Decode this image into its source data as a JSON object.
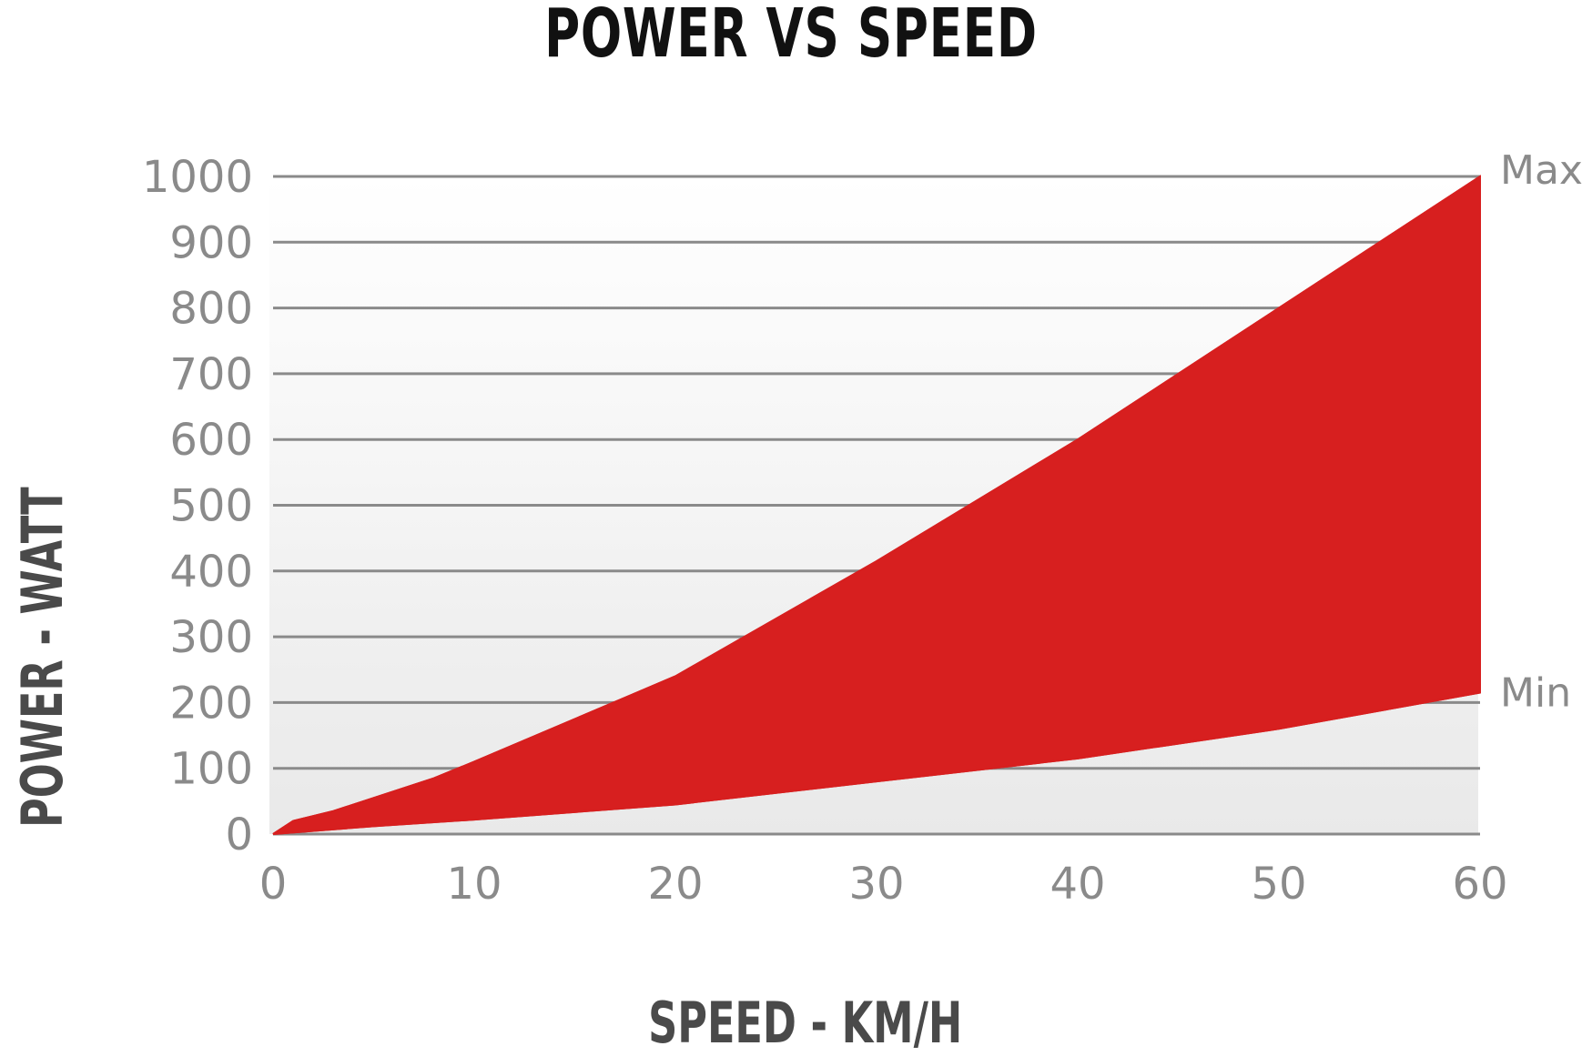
{
  "chart_data": {
    "type": "area",
    "title": "POWER VS SPEED",
    "xlabel": "SPEED - KM/H",
    "ylabel": "POWER - WATT",
    "xlim": [
      0,
      60
    ],
    "ylim": [
      0,
      1000
    ],
    "x_ticks": [
      "0",
      "10",
      "20",
      "30",
      "40",
      "50",
      "60"
    ],
    "y_ticks": [
      "0",
      "100",
      "200",
      "300",
      "400",
      "500",
      "600",
      "700",
      "800",
      "900",
      "1000"
    ],
    "grid": true,
    "fill_color": "#d71f1f",
    "series": [
      {
        "name": "Max",
        "x": [
          0,
          1,
          3,
          8,
          10,
          20,
          30,
          40,
          50,
          60
        ],
        "values": [
          0,
          20,
          35,
          85,
          110,
          240,
          415,
          600,
          800,
          1000
        ]
      },
      {
        "name": "Min",
        "x": [
          0,
          5,
          10,
          20,
          30,
          40,
          50,
          60
        ],
        "values": [
          0,
          12,
          22,
          45,
          80,
          115,
          160,
          215
        ]
      }
    ]
  }
}
